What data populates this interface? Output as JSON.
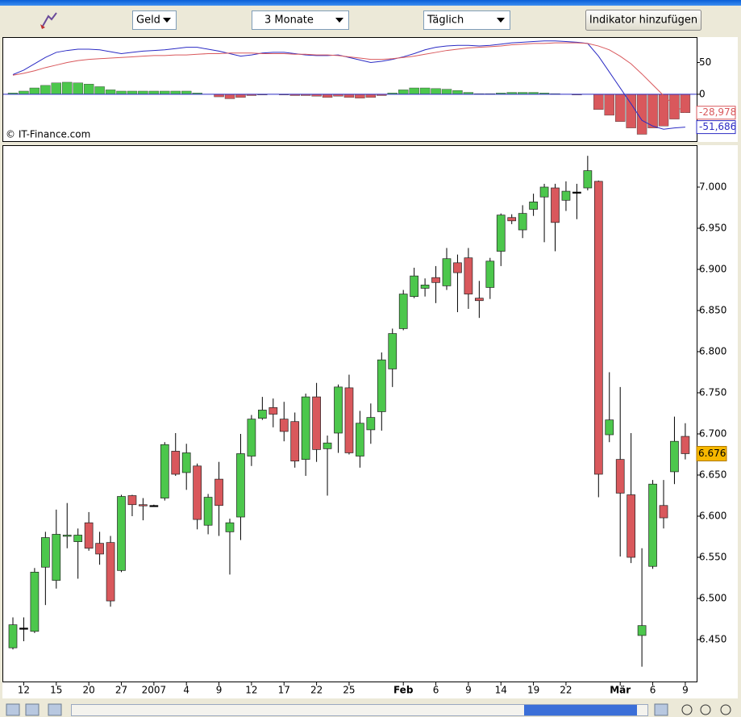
{
  "toolbar": {
    "currency": "Geld",
    "period": "3 Monate",
    "interval": "Täglich",
    "add_indicator": "Indikator hinzufügen"
  },
  "copyright": "© IT-Finance.com",
  "chart_data": [
    {
      "type": "candlestick",
      "categories": [
        null,
        "12",
        null,
        null,
        "15",
        null,
        null,
        "20",
        null,
        null,
        "27",
        null,
        null,
        "2007",
        null,
        null,
        "4",
        null,
        null,
        "9",
        null,
        null,
        "12",
        null,
        null,
        "17",
        null,
        null,
        "22",
        null,
        null,
        "25",
        null,
        null,
        null,
        null,
        "Feb",
        null,
        null,
        "6",
        null,
        null,
        "9",
        null,
        null,
        "14",
        null,
        null,
        "19",
        null,
        null,
        "22",
        null,
        null,
        null,
        null,
        "Mär",
        null,
        null,
        "6",
        null,
        null,
        "9"
      ],
      "open": [
        6440,
        6464,
        6460,
        6538,
        6522,
        6576,
        6569,
        6592,
        6567,
        6568,
        6534,
        6625,
        6614,
        6613,
        6622,
        6679,
        6653,
        6661,
        6589,
        6645,
        6581,
        6599,
        6673,
        6719,
        6732,
        6718,
        6715,
        6669,
        6745,
        6682,
        6701,
        6756,
        6673,
        6705,
        6727,
        6779,
        6828,
        6867,
        6877,
        6890,
        6880,
        6908,
        6914,
        6865,
        6878,
        6922,
        6963,
        6948,
        6973,
        6988,
        6999,
        6984,
        6994,
        6999,
        7007,
        6699,
        6669,
        6626,
        6455,
        6539,
        6613,
        6654,
        6697
      ],
      "high": [
        6477,
        6477,
        6537,
        6581,
        6608,
        6616,
        6585,
        6605,
        6581,
        6576,
        6626,
        6626,
        6622,
        6614,
        6690,
        6701,
        6688,
        6664,
        6627,
        6666,
        6597,
        6700,
        6723,
        6745,
        6743,
        6739,
        6726,
        6749,
        6762,
        6698,
        6760,
        6772,
        6728,
        6737,
        6799,
        6828,
        6875,
        6902,
        6889,
        6904,
        6926,
        6918,
        6926,
        6886,
        6914,
        6968,
        6967,
        6978,
        6992,
        7004,
        7004,
        7007,
        7004,
        7038,
        7008,
        6775,
        6757,
        6701,
        6561,
        6644,
        6644,
        6721,
        6713
      ],
      "low": [
        6438,
        6448,
        6458,
        6492,
        6512,
        6561,
        6524,
        6558,
        6541,
        6490,
        6532,
        6600,
        6595,
        6612,
        6619,
        6649,
        6632,
        6584,
        6578,
        6576,
        6529,
        6571,
        6661,
        6717,
        6708,
        6691,
        6659,
        6649,
        6666,
        6625,
        6677,
        6675,
        6659,
        6688,
        6704,
        6757,
        6826,
        6865,
        6867,
        6859,
        6875,
        6848,
        6852,
        6841,
        6864,
        6904,
        6955,
        6938,
        6965,
        6933,
        6922,
        6971,
        6961,
        6996,
        6623,
        6690,
        6551,
        6543,
        6417,
        6536,
        6585,
        6639,
        6669
      ],
      "close": [
        6468,
        6464,
        6532,
        6574,
        6578,
        6577,
        6577,
        6561,
        6554,
        6497,
        6624,
        6614,
        6613,
        6613,
        6687,
        6651,
        6677,
        6596,
        6623,
        6613,
        6592,
        6676,
        6718,
        6729,
        6724,
        6703,
        6667,
        6745,
        6681,
        6689,
        6757,
        6677,
        6713,
        6720,
        6790,
        6822,
        6870,
        6892,
        6881,
        6884,
        6913,
        6896,
        6870,
        6862,
        6910,
        6966,
        6959,
        6968,
        6982,
        7000,
        6957,
        6995,
        6994,
        7020,
        6651,
        6717,
        6628,
        6550,
        6467,
        6639,
        6598,
        6691,
        6676
      ],
      "close_label": "6.676",
      "up_color": "#4cc74c",
      "down_color": "#d9585c",
      "flat_color": "#000000",
      "ylim": [
        6401,
        7049
      ],
      "yticks": [
        {
          "value": 6450,
          "label": "6.450"
        },
        {
          "value": 6500,
          "label": "6.500"
        },
        {
          "value": 6550,
          "label": "6.550"
        },
        {
          "value": 6600,
          "label": "6.600"
        },
        {
          "value": 6650,
          "label": "6.650"
        },
        {
          "value": 6700,
          "label": "6.700"
        },
        {
          "value": 6750,
          "label": "6.750"
        },
        {
          "value": 6800,
          "label": "6.800"
        },
        {
          "value": 6850,
          "label": "6.850"
        },
        {
          "value": 6900,
          "label": "6.900"
        },
        {
          "value": 6950,
          "label": "6.950"
        },
        {
          "value": 7000,
          "label": "7.000"
        }
      ],
      "grid": false
    },
    {
      "type": "macd",
      "ylim": [
        -72.5,
        87.5
      ],
      "yticks": [
        0,
        50
      ],
      "histogram": {
        "up_color": "#4cc74c",
        "down_color": "#d9585c",
        "values": [
          2,
          5,
          10,
          14,
          18,
          19,
          18,
          16,
          12,
          7,
          5,
          5,
          5,
          5,
          5,
          5,
          5,
          2,
          0,
          -4,
          -7,
          -5,
          -2,
          -1,
          0,
          -1,
          -2,
          -2,
          -3,
          -5,
          -3,
          -5,
          -6,
          -5,
          -2,
          2,
          7,
          10,
          10,
          9,
          8,
          6,
          3,
          1,
          1,
          2,
          3,
          3,
          3,
          2,
          1,
          0,
          -1,
          0,
          -24,
          -33,
          -43,
          -53,
          -63,
          -53,
          -50,
          -39,
          -29
        ]
      },
      "series": [
        {
          "color": "#2b2bc4",
          "last_label": "-51,686",
          "values": [
            31,
            38,
            48,
            58,
            66,
            69,
            71,
            71,
            70,
            67,
            64,
            66,
            68,
            69,
            70,
            72,
            74,
            74,
            71,
            68,
            64,
            60,
            62,
            65,
            66,
            66,
            64,
            62,
            61,
            61,
            62,
            58,
            54,
            50,
            52,
            55,
            59,
            64,
            70,
            74,
            76,
            77,
            77,
            76,
            77,
            79,
            81,
            82,
            83,
            84,
            84,
            83,
            82,
            80,
            60,
            35,
            10,
            -15,
            -41,
            -50,
            -55,
            -53,
            -51.686
          ]
        },
        {
          "color": "#d9585c",
          "last_label": "-28,978",
          "values": [
            30,
            33,
            37,
            42,
            46,
            50,
            53,
            55,
            56,
            57,
            58,
            59,
            60,
            61,
            61,
            62,
            62,
            63,
            64,
            64,
            65,
            65,
            65,
            64,
            64,
            64,
            63,
            63,
            62,
            62,
            61,
            59,
            57,
            55,
            55,
            56,
            58,
            60,
            63,
            66,
            69,
            71,
            73,
            74,
            75,
            76,
            78,
            79,
            80,
            80,
            81,
            81,
            81,
            80,
            76,
            70,
            60,
            48,
            32,
            15,
            -2,
            -17,
            -28.978
          ]
        }
      ]
    }
  ]
}
